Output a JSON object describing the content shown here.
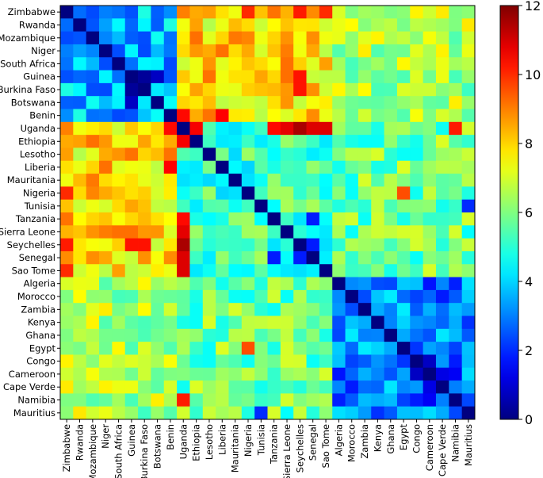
{
  "chart_data": {
    "type": "heatmap",
    "title": "",
    "xlabel": "",
    "ylabel": "",
    "categories": [
      "Zimbabwe",
      "Rwanda",
      "Mozambique",
      "Niger",
      "South Africa",
      "Guinea",
      "Burkina Faso",
      "Botswana",
      "Benin",
      "Uganda",
      "Ethiopia",
      "Lesotho",
      "Liberia",
      "Mauritania",
      "Nigeria",
      "Tunisia",
      "Tanzania",
      "Sierra Leone",
      "Seychelles",
      "Senegal",
      "Sao Tome",
      "Algeria",
      "Morocco",
      "Zambia",
      "Kenya",
      "Ghana",
      "Egypt",
      "Congo",
      "Cameroon",
      "Cape Verde",
      "Namibia",
      "Mauritius"
    ],
    "groups": [
      9,
      12,
      11
    ],
    "diagonal": 0,
    "block_means": [
      [
        3.6,
        7.9,
        6.5
      ],
      [
        7.9,
        5.2,
        5.8
      ],
      [
        6.5,
        5.8,
        3.0
      ]
    ],
    "notable_cells": [
      {
        "row": "Uganda",
        "col": "Seychelles",
        "value": 11.5
      },
      {
        "row": "Seychelles",
        "col": "Uganda",
        "value": 11.5
      },
      {
        "row": "Uganda",
        "col": "Sierra Leone",
        "value": 10.8
      },
      {
        "row": "Uganda",
        "col": "Senegal",
        "value": 10.9
      },
      {
        "row": "Uganda",
        "col": "Sao Tome",
        "value": 10.9
      },
      {
        "row": "Uganda",
        "col": "Ethiopia",
        "value": 10.6
      },
      {
        "row": "Uganda",
        "col": "Tanzania",
        "value": 10.4
      },
      {
        "row": "Uganda",
        "col": "Namibia",
        "value": 10.2
      },
      {
        "row": "Zimbabwe",
        "col": "Seychelles",
        "value": 10.2
      },
      {
        "row": "Zimbabwe",
        "col": "Sao Tome",
        "value": 10.0
      },
      {
        "row": "Zimbabwe",
        "col": "Nigeria",
        "value": 10.0
      },
      {
        "row": "Guinea",
        "col": "Seychelles",
        "value": 10.3
      },
      {
        "row": "Burkina Faso",
        "col": "Seychelles",
        "value": 10.3
      },
      {
        "row": "Benin",
        "col": "Liberia",
        "value": 10.5
      },
      {
        "row": "Benin",
        "col": "Uganda",
        "value": 10.4
      },
      {
        "row": "Egypt",
        "col": "Nigeria",
        "value": 9.6
      },
      {
        "row": "Nigeria",
        "col": "Egypt",
        "value": 9.6
      },
      {
        "row": "Guinea",
        "col": "Burkina Faso",
        "value": 0.3
      },
      {
        "row": "Guinea",
        "col": "Botswana",
        "value": 0.8
      },
      {
        "row": "Mauritius",
        "col": "Tunisia",
        "value": 2.0
      },
      {
        "row": "Senegal",
        "col": "Tanzania",
        "value": 1.8
      },
      {
        "row": "Seychelles",
        "col": "Senegal",
        "value": 1.8
      },
      {
        "row": "Cameroon",
        "col": "Congo",
        "value": 0.8
      },
      {
        "row": "Cape Verde",
        "col": "Cameroon",
        "value": 1.2
      },
      {
        "row": "Namibia",
        "col": "Cameroon",
        "value": 1.4
      }
    ],
    "colorbar": {
      "colormap": "jet",
      "min": 0,
      "max": 12,
      "ticks": [
        "0",
        "2",
        "4",
        "6",
        "8",
        "10",
        "12"
      ]
    }
  }
}
